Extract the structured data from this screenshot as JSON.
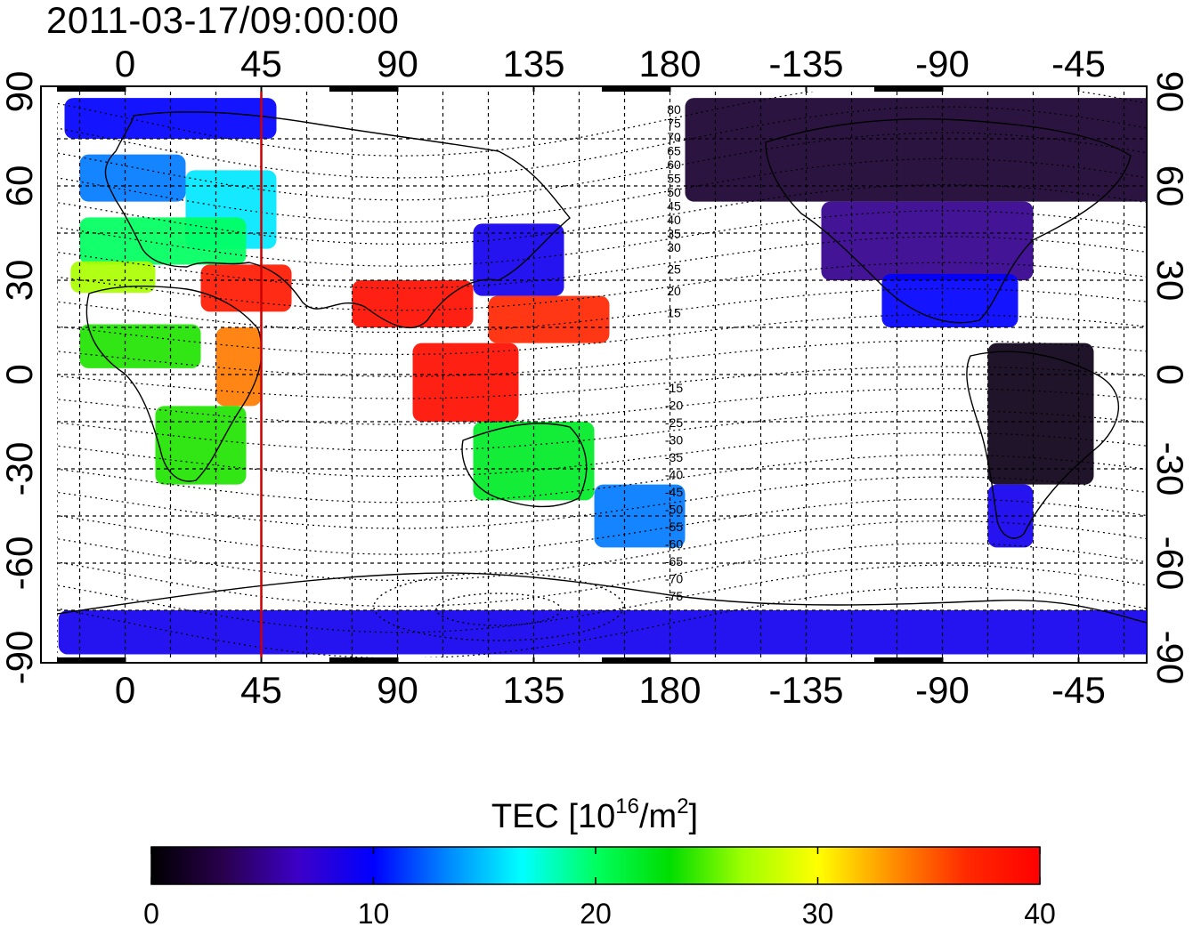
{
  "title": "2011-03-17/09:00:00",
  "map": {
    "lon_ticks": [
      "0",
      "45",
      "90",
      "135",
      "180",
      "-135",
      "-90",
      "-45"
    ],
    "lat_ticks": [
      "90",
      "60",
      "30",
      "0",
      "-30",
      "-60",
      "-90"
    ],
    "lat_ticks_right": [
      "-90",
      "-60",
      "-30",
      "0",
      "30",
      "60",
      "90"
    ],
    "contour_labels_north": [
      "80",
      "75",
      "70",
      "65",
      "60",
      "55",
      "50",
      "45",
      "40",
      "35",
      "30",
      "25",
      "20",
      "15"
    ],
    "contour_labels_south": [
      "-15",
      "-20",
      "-25",
      "-30",
      "-35",
      "-40",
      "-45",
      "-50",
      "-55",
      "-60",
      "-65",
      "-70",
      "-75"
    ],
    "meridian_line_color": "#cc0000",
    "meridian_lon": 45
  },
  "colorbar": {
    "label_prefix": "TEC  [10",
    "label_sup1": "16",
    "label_mid": "/m",
    "label_sup2": "2",
    "label_suffix": "]",
    "ticks": [
      "0",
      "10",
      "20",
      "30",
      "40"
    ],
    "min": 0,
    "max": 40,
    "colormap": [
      "#000000",
      "#2a0050",
      "#3c00c8",
      "#0000ff",
      "#0088ff",
      "#00ffff",
      "#00ff60",
      "#00dd00",
      "#a0ff00",
      "#ffff00",
      "#ff9000",
      "#ff2a00",
      "#ff0000"
    ]
  },
  "chart_data": {
    "type": "heatmap",
    "title": "2011-03-17/09:00:00",
    "colorbar_label": "TEC  [10^16/m^2]",
    "value_range": [
      0,
      40
    ],
    "lon_range": [
      -22.5,
      337.5
    ],
    "lat_range": [
      -90,
      90
    ],
    "regions": [
      {
        "lon": [
          -20,
          50
        ],
        "lat": [
          75,
          88
        ],
        "value": 10
      },
      {
        "lon": [
          -15,
          20
        ],
        "lat": [
          55,
          70
        ],
        "value": 13
      },
      {
        "lon": [
          20,
          50
        ],
        "lat": [
          40,
          65
        ],
        "value": 16
      },
      {
        "lon": [
          -15,
          40
        ],
        "lat": [
          35,
          50
        ],
        "value": 20
      },
      {
        "lon": [
          -18,
          10
        ],
        "lat": [
          26,
          36
        ],
        "value": 27
      },
      {
        "lon": [
          25,
          55
        ],
        "lat": [
          20,
          35
        ],
        "value": 38
      },
      {
        "lon": [
          30,
          45
        ],
        "lat": [
          -10,
          15
        ],
        "value": 34
      },
      {
        "lon": [
          -15,
          25
        ],
        "lat": [
          2,
          16
        ],
        "value": 24
      },
      {
        "lon": [
          10,
          40
        ],
        "lat": [
          -35,
          -10
        ],
        "value": 24
      },
      {
        "lon": [
          75,
          115
        ],
        "lat": [
          15,
          30
        ],
        "value": 39
      },
      {
        "lon": [
          95,
          130
        ],
        "lat": [
          -15,
          10
        ],
        "value": 39
      },
      {
        "lon": [
          115,
          145
        ],
        "lat": [
          25,
          48
        ],
        "value": 9
      },
      {
        "lon": [
          120,
          160
        ],
        "lat": [
          10,
          25
        ],
        "value": 37
      },
      {
        "lon": [
          115,
          155
        ],
        "lat": [
          -40,
          -15
        ],
        "value": 22
      },
      {
        "lon": [
          155,
          185
        ],
        "lat": [
          -55,
          -35
        ],
        "value": 13
      },
      {
        "lon": [
          185,
          340
        ],
        "lat": [
          55,
          88
        ],
        "value": 2
      },
      {
        "lon": [
          230,
          300
        ],
        "lat": [
          30,
          55
        ],
        "value": 5
      },
      {
        "lon": [
          250,
          295
        ],
        "lat": [
          15,
          32
        ],
        "value": 10
      },
      {
        "lon": [
          285,
          320
        ],
        "lat": [
          -35,
          10
        ],
        "value": 1
      },
      {
        "lon": [
          285,
          300
        ],
        "lat": [
          -55,
          -35
        ],
        "value": 9
      },
      {
        "lon": [
          -22,
          340
        ],
        "lat": [
          -89,
          -75
        ],
        "value": 9
      }
    ]
  }
}
